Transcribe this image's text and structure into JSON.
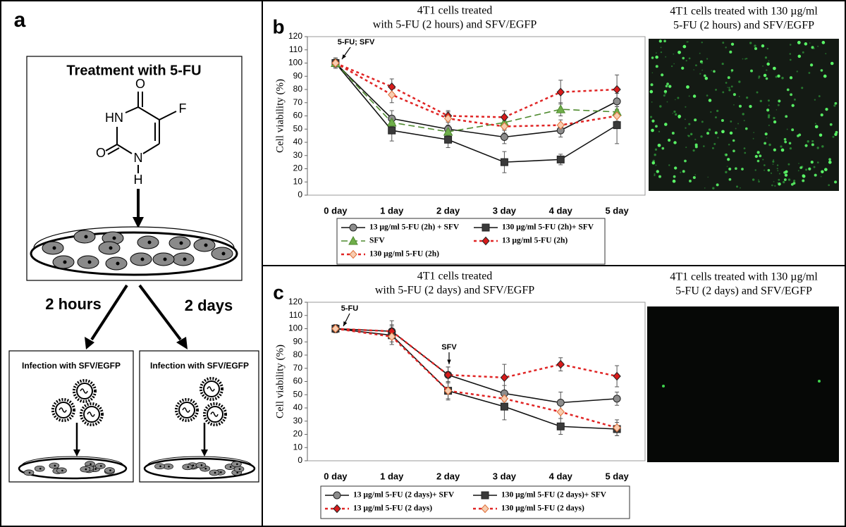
{
  "panel_a": {
    "label": "a",
    "title": "Treatment with 5-FU",
    "molecule": [
      "O",
      "F",
      "HN",
      "O",
      "N",
      "H"
    ],
    "branches": [
      "2 hours",
      "2 days"
    ],
    "infection": [
      "Infection with SFV/EGFP",
      "Infection with SFV/EGFP"
    ]
  },
  "chart_data": [
    {
      "type": "line",
      "panel_label": "b",
      "title": [
        "4T1 cells treated",
        "with 5-FU (2 hours) and SFV/EGFP"
      ],
      "y_label": "Cell viability (%)",
      "annotations": [
        "5-FU; SFV"
      ],
      "categories": [
        "0 day",
        "1 day",
        "2 day",
        "3 day",
        "4 day",
        "5 day"
      ],
      "ylim": [
        0,
        120
      ],
      "yticks": [
        0,
        10,
        20,
        30,
        40,
        50,
        60,
        70,
        80,
        90,
        100,
        110,
        120
      ],
      "series": [
        {
          "name": "13 µg/ml 5-FU (2h) + SFV",
          "color": "#111111",
          "marker": "circle",
          "marker_color": "#8c8c8c",
          "line_style": "solid",
          "values": [
            100,
            58,
            50,
            44,
            49,
            71
          ],
          "errors": [
            4,
            6,
            5,
            5,
            5,
            6
          ]
        },
        {
          "name": "130 µg/ml 5-FU (2h)+ SFV",
          "color": "#111111",
          "marker": "square",
          "marker_color": "#3a3a3a",
          "line_style": "solid",
          "values": [
            100,
            49,
            42,
            25,
            27,
            53
          ],
          "errors": [
            3,
            8,
            6,
            8,
            4,
            14
          ]
        },
        {
          "name": "SFV",
          "color": "#4e8a2e",
          "marker": "triangle",
          "marker_color": "#6fae4a",
          "line_style": "dashed",
          "values": [
            100,
            55,
            48,
            55,
            65,
            63
          ],
          "errors": [
            3,
            5,
            4,
            5,
            5,
            4
          ]
        },
        {
          "name": "13 µg/ml 5-FU (2h)",
          "color": "#e02424",
          "marker": "diamond",
          "marker_color": "#d81b1b",
          "line_style": "dotted",
          "values": [
            100,
            82,
            60,
            59,
            78,
            80
          ],
          "errors": [
            3,
            6,
            4,
            5,
            9,
            11
          ]
        },
        {
          "name": "130 µg/ml 5-FU (2h)",
          "color": "#e02424",
          "marker": "diamond",
          "marker_color": "#f7cdb0",
          "line_style": "dotted",
          "values": [
            100,
            76,
            58,
            52,
            53,
            60
          ],
          "errors": [
            3,
            6,
            5,
            5,
            4,
            4
          ]
        }
      ]
    },
    {
      "type": "line",
      "panel_label": "c",
      "title": [
        "4T1 cells treated",
        "with 5-FU (2 days) and SFV/EGFP"
      ],
      "y_label": "Cell viability (%)",
      "annotations": [
        "5-FU",
        "SFV"
      ],
      "categories": [
        "0 day",
        "1 day",
        "2 day",
        "3 day",
        "4 day",
        "5 day"
      ],
      "ylim": [
        0,
        120
      ],
      "yticks": [
        0,
        10,
        20,
        30,
        40,
        50,
        60,
        70,
        80,
        90,
        100,
        110,
        120
      ],
      "series": [
        {
          "name": "13 µg/ml 5-FU (2 days)+ SFV",
          "color": "#111111",
          "marker": "circle",
          "marker_color": "#8c8c8c",
          "line_style": "solid",
          "values": [
            100,
            98,
            65,
            51,
            44,
            47
          ],
          "errors": [
            3,
            8,
            6,
            6,
            8,
            5
          ]
        },
        {
          "name": "130 µg/ml 5-FU (2 days)+ SFV",
          "color": "#111111",
          "marker": "square",
          "marker_color": "#3a3a3a",
          "line_style": "solid",
          "values": [
            100,
            95,
            53,
            41,
            26,
            24
          ],
          "errors": [
            3,
            7,
            7,
            10,
            6,
            5
          ]
        },
        {
          "name": "13 µg/ml 5-FU (2 days)",
          "color": "#e02424",
          "marker": "diamond",
          "marker_color": "#d81b1b",
          "line_style": "dotted",
          "values": [
            100,
            98,
            65,
            63,
            73,
            64
          ],
          "errors": [
            3,
            5,
            6,
            10,
            5,
            8
          ]
        },
        {
          "name": "130 µg/ml 5-FU (2 days)",
          "color": "#e02424",
          "marker": "diamond",
          "marker_color": "#f7cdb0",
          "line_style": "dotted",
          "values": [
            100,
            94,
            53,
            47,
            37,
            25
          ],
          "errors": [
            3,
            6,
            6,
            6,
            5,
            6
          ]
        }
      ]
    }
  ],
  "micrographs": [
    {
      "title": [
        "4T1 cells treated with 130 µg/ml",
        "5-FU  (2 hours) and SFV/EGFP"
      ]
    },
    {
      "title": [
        "4T1 cells treated with 130 µg/ml",
        "5-FU (2 days) and SFV/EGFP"
      ]
    }
  ]
}
